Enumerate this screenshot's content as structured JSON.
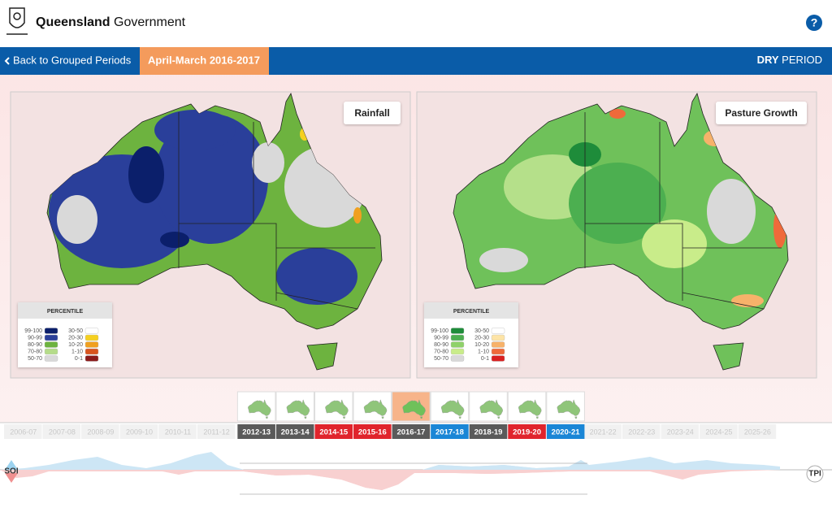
{
  "header": {
    "title_bold": "Queensland",
    "title_rest": "Government",
    "help": "?"
  },
  "nav": {
    "back": "Back to Grouped Periods",
    "period": "April-March 2016-2017",
    "mode_bold": "DRY",
    "mode_rest": "PERIOD"
  },
  "maps": [
    {
      "title": "Rainfall",
      "legend": {
        "title": "PERCENTILE",
        "items": [
          {
            "label": "99-100",
            "color": "#0b1f6b"
          },
          {
            "label": "90-99",
            "color": "#2a3f9a"
          },
          {
            "label": "80-90",
            "color": "#6db33f"
          },
          {
            "label": "70-80",
            "color": "#b5dc8a"
          },
          {
            "label": "50-70",
            "color": "#d9d9d9"
          },
          {
            "label": "30-50",
            "color": "#ffffff"
          },
          {
            "label": "20-30",
            "color": "#f5d020"
          },
          {
            "label": "10-20",
            "color": "#f0a020"
          },
          {
            "label": "1-10",
            "color": "#d9541e"
          },
          {
            "label": "0-1",
            "color": "#8b1a1a"
          }
        ]
      }
    },
    {
      "title": "Pasture Growth",
      "legend": {
        "title": "PERCENTILE",
        "items": [
          {
            "label": "99-100",
            "color": "#1e8c3a"
          },
          {
            "label": "90-99",
            "color": "#4caf50"
          },
          {
            "label": "80-90",
            "color": "#8fd16a"
          },
          {
            "label": "70-80",
            "color": "#c9ec8a"
          },
          {
            "label": "50-70",
            "color": "#d9d9d9"
          },
          {
            "label": "30-50",
            "color": "#ffffff"
          },
          {
            "label": "20-30",
            "color": "#fde4a6"
          },
          {
            "label": "10-20",
            "color": "#f7b26a"
          },
          {
            "label": "1-10",
            "color": "#ef6a3a"
          },
          {
            "label": "0-1",
            "color": "#d92020"
          }
        ]
      }
    }
  ],
  "timeline": {
    "before": [
      "2006-07",
      "2007-08",
      "2008-09",
      "2009-10",
      "2010-11",
      "2011-12"
    ],
    "periods": [
      {
        "label": "2012-13",
        "color": "#5a5a5a"
      },
      {
        "label": "2013-14",
        "color": "#5a5a5a"
      },
      {
        "label": "2014-15",
        "color": "#e0242c"
      },
      {
        "label": "2015-16",
        "color": "#e0242c"
      },
      {
        "label": "2016-17",
        "color": "#5a5a5a"
      },
      {
        "label": "2017-18",
        "color": "#1a86d6"
      },
      {
        "label": "2018-19",
        "color": "#5a5a5a"
      },
      {
        "label": "2019-20",
        "color": "#e0242c"
      },
      {
        "label": "2020-21",
        "color": "#1a86d6"
      }
    ],
    "after": [
      "2021-22",
      "2022-23",
      "2023-24",
      "2024-25",
      "2025-26"
    ]
  },
  "index_left": "SOI",
  "index_right": "TPI"
}
